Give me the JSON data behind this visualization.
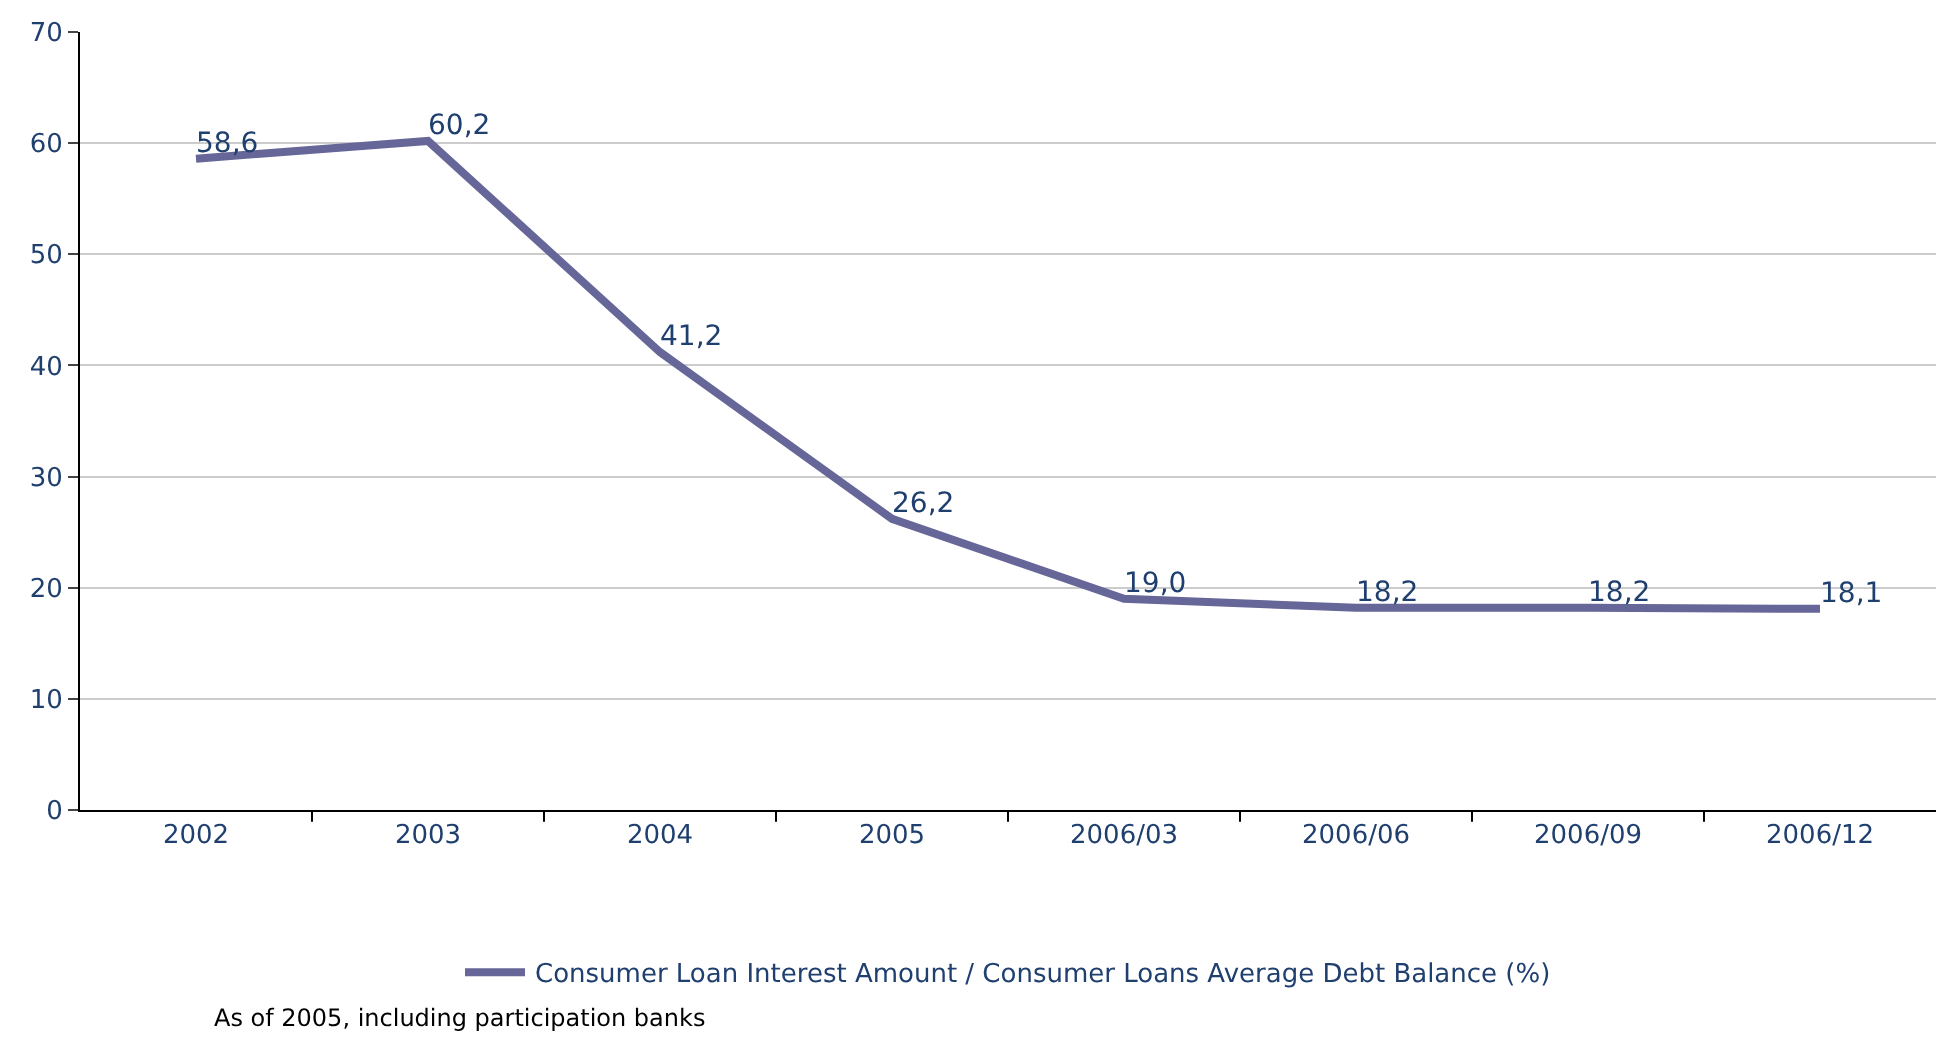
{
  "chart_data": {
    "type": "line",
    "categories": [
      "2002",
      "2003",
      "2004",
      "2005",
      "2006/03",
      "2006/06",
      "2006/09",
      "2006/12"
    ],
    "series": [
      {
        "name": "Consumer Loan Interest Amount / Consumer Loans Average Debt Balance (%)",
        "color": "#666699",
        "values": [
          58.6,
          60.2,
          41.2,
          26.2,
          19.0,
          18.2,
          18.2,
          18.1
        ],
        "value_labels": [
          "58,6",
          "60,2",
          "41,2",
          "26,2",
          "19,0",
          "18,2",
          "18,2",
          "18,1"
        ]
      }
    ],
    "ylim": [
      0,
      70
    ],
    "yticks": [
      0,
      10,
      20,
      30,
      40,
      50,
      60,
      70
    ],
    "grid": "y",
    "legend": "bottom",
    "marker": "none",
    "line_style": "solid",
    "annotations": [
      "As of 2005, including participation banks"
    ]
  }
}
